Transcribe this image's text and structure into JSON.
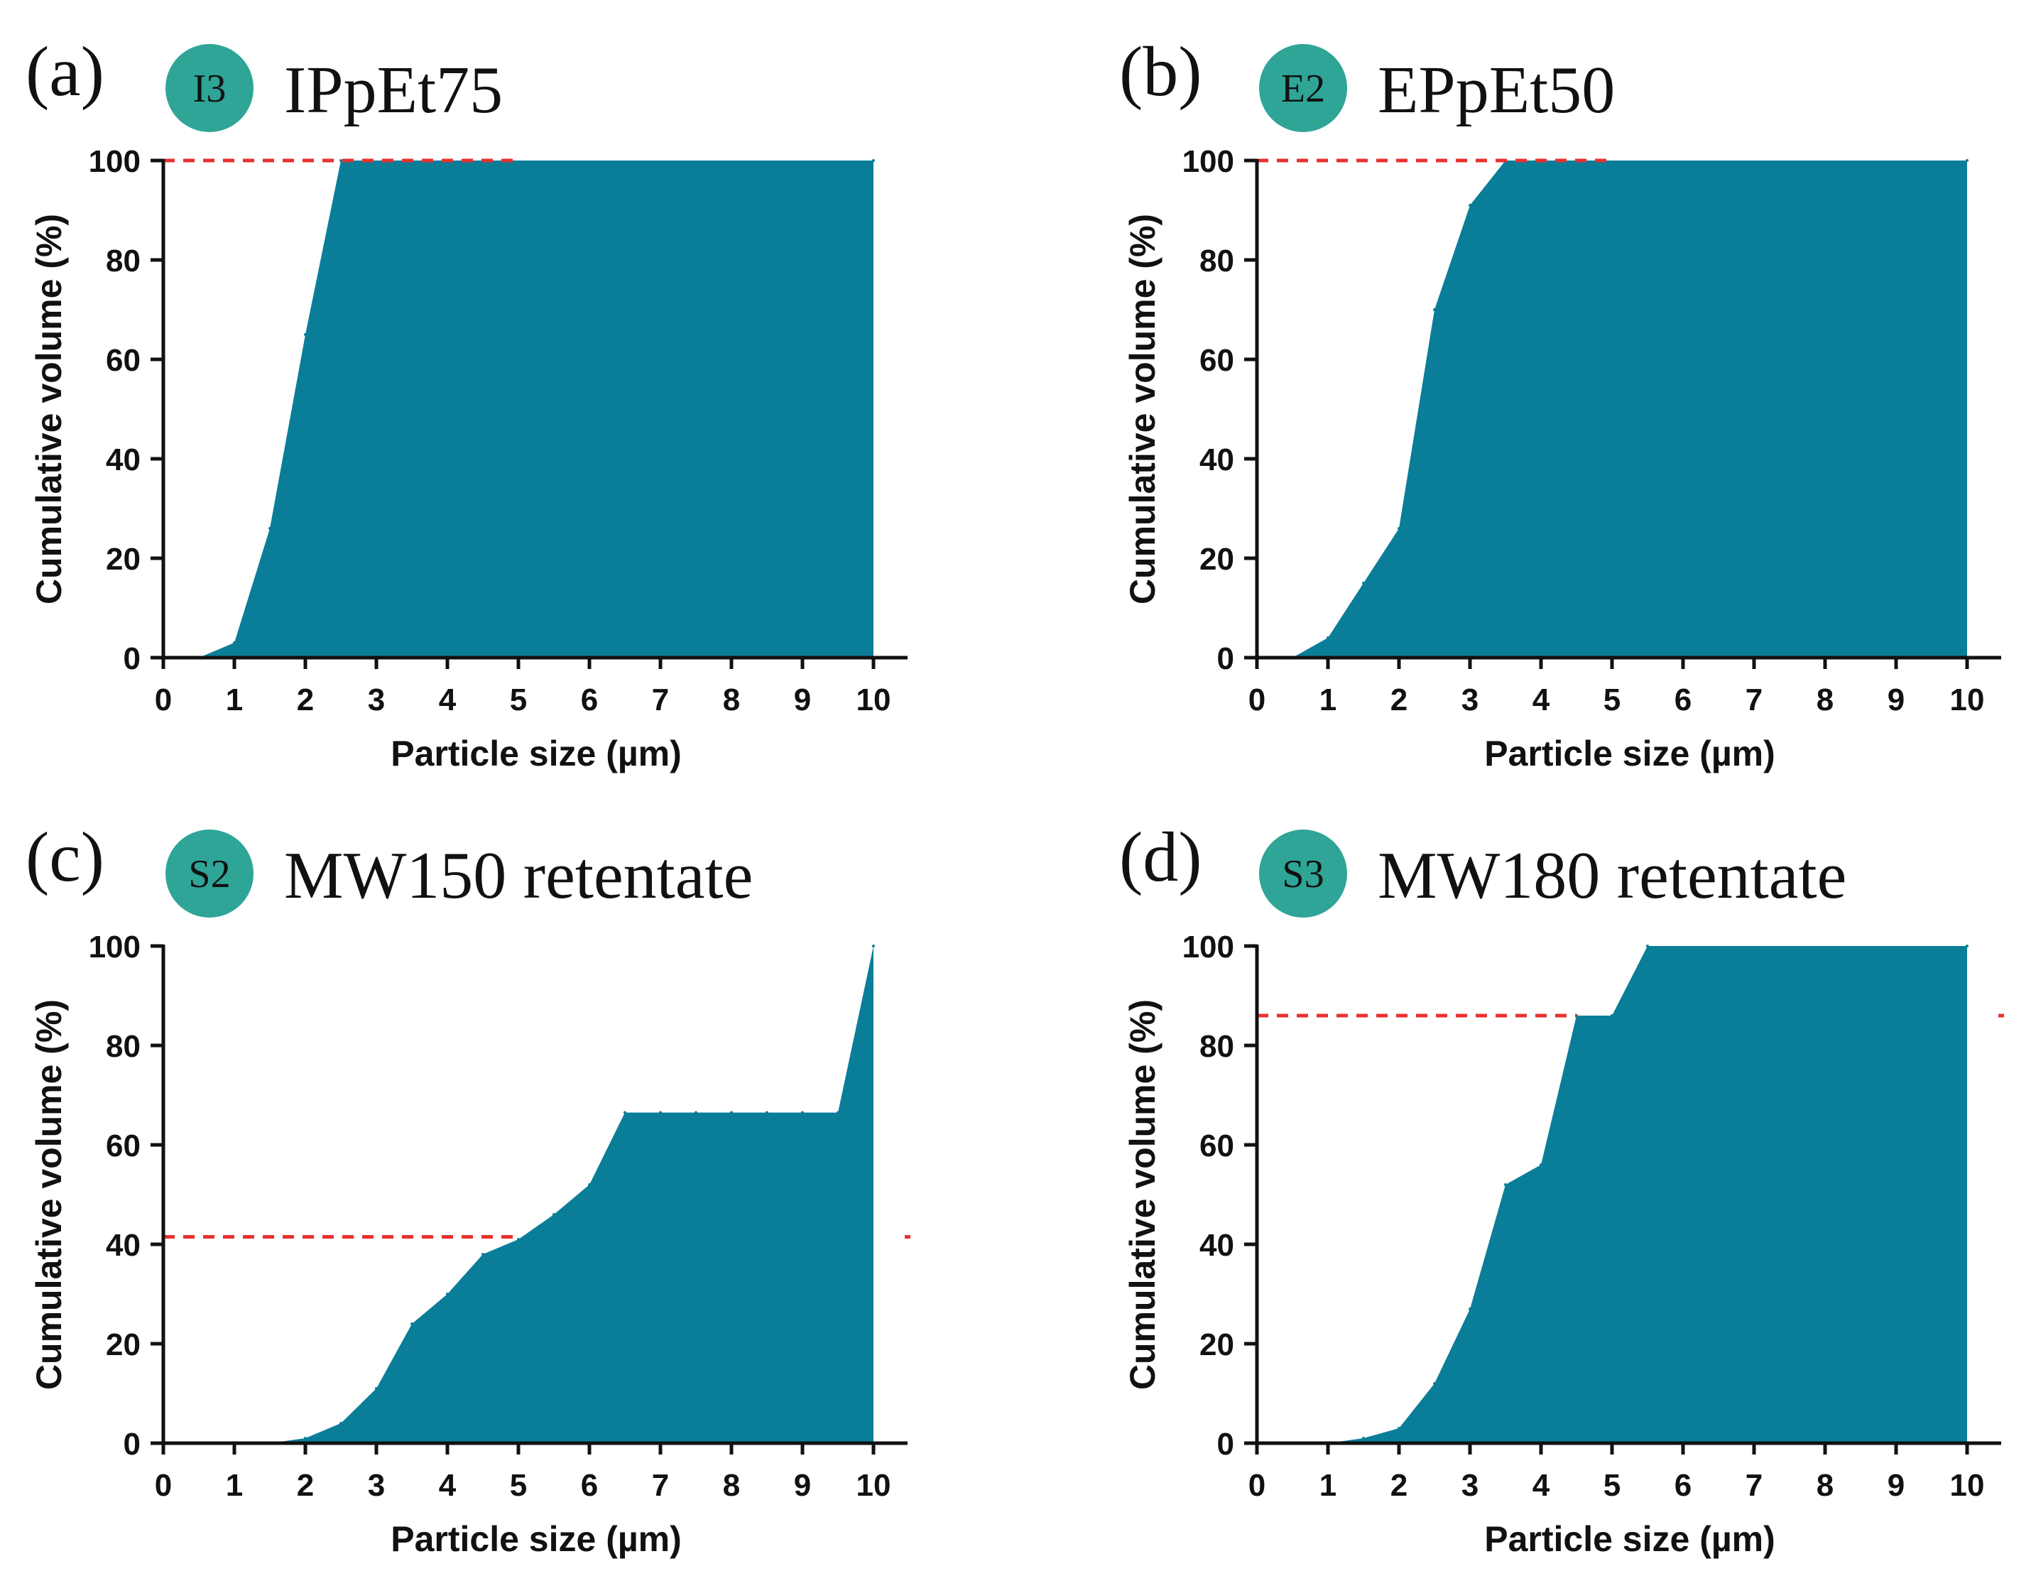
{
  "colors": {
    "fill": "#0a7e98",
    "badge": "#2ea597",
    "reference_line": "#e8312f",
    "axis": "#111111"
  },
  "chart_data": [
    {
      "type": "area",
      "panel_label": "(a)",
      "badge": "I3",
      "title": "IPpEt75",
      "xlabel": "Particle size (µm)",
      "ylabel": "Cumulative volume (%)",
      "xlim": [
        0,
        10
      ],
      "ylim": [
        0,
        100
      ],
      "x_ticks": [
        "0",
        "1",
        "2",
        "3",
        "4",
        "5",
        "6",
        "7",
        "8",
        "9",
        "10"
      ],
      "y_ticks": [
        "0",
        "20",
        "40",
        "60",
        "80",
        "100"
      ],
      "x": [
        0,
        0.5,
        1,
        1.5,
        2,
        2.5,
        10
      ],
      "y": [
        0,
        0,
        3,
        26,
        65,
        100,
        100
      ],
      "reference_line": {
        "y": 100,
        "x_range": [
          0,
          5
        ]
      }
    },
    {
      "type": "area",
      "panel_label": "(b)",
      "badge": "E2",
      "title": "EPpEt50",
      "xlabel": "Particle size (µm)",
      "ylabel": "Cumulative volume (%)",
      "xlim": [
        0,
        10
      ],
      "ylim": [
        0,
        100
      ],
      "x_ticks": [
        "0",
        "1",
        "2",
        "3",
        "4",
        "5",
        "6",
        "7",
        "8",
        "9",
        "10"
      ],
      "y_ticks": [
        "0",
        "20",
        "40",
        "60",
        "80",
        "100"
      ],
      "x": [
        0,
        0.5,
        1,
        1.5,
        2,
        2.5,
        3,
        3.5,
        10
      ],
      "y": [
        0,
        0,
        4,
        15,
        26,
        70,
        91,
        100,
        100
      ],
      "reference_line": {
        "y": 100,
        "x_range": [
          0,
          5
        ]
      }
    },
    {
      "type": "area",
      "panel_label": "(c)",
      "badge": "S2",
      "title": "MW150 retentate",
      "xlabel": "Particle size (µm)",
      "ylabel": "Cumulative volume (%)",
      "xlim": [
        0,
        10
      ],
      "ylim": [
        0,
        100
      ],
      "x_ticks": [
        "0",
        "1",
        "2",
        "3",
        "4",
        "5",
        "6",
        "7",
        "8",
        "9",
        "10"
      ],
      "y_ticks": [
        "0",
        "20",
        "40",
        "60",
        "80",
        "100"
      ],
      "x": [
        0,
        0.5,
        1,
        1.5,
        2,
        2.5,
        3,
        3.5,
        4,
        4.5,
        5,
        5.5,
        6,
        6.5,
        7,
        7.5,
        8,
        8.5,
        9,
        9.5,
        10
      ],
      "y": [
        0,
        0,
        0,
        0,
        1,
        4,
        11,
        24,
        30,
        38,
        41,
        46,
        52,
        66.5,
        66.5,
        66.5,
        66.5,
        66.5,
        66.5,
        66.5,
        100
      ],
      "reference_line": {
        "y": 41.5,
        "x_range": [
          0,
          5
        ]
      },
      "reference_line_extra": {
        "y": 41.5,
        "x": 10.5
      }
    },
    {
      "type": "area",
      "panel_label": "(d)",
      "badge": "S3",
      "title": "MW180 retentate",
      "xlabel": "Particle size (µm)",
      "ylabel": "Cumulative volume (%)",
      "xlim": [
        0,
        10
      ],
      "ylim": [
        0,
        100
      ],
      "x_ticks": [
        "0",
        "1",
        "2",
        "3",
        "4",
        "5",
        "6",
        "7",
        "8",
        "9",
        "10"
      ],
      "y_ticks": [
        "0",
        "20",
        "40",
        "60",
        "80",
        "100"
      ],
      "x": [
        0,
        0.5,
        1,
        1.5,
        2,
        2.5,
        3,
        3.5,
        4,
        4.5,
        5,
        5.5,
        10
      ],
      "y": [
        0,
        0,
        0,
        1,
        3,
        12,
        27,
        52,
        56,
        86,
        86,
        100,
        100
      ],
      "reference_line": {
        "y": 86,
        "x_range": [
          0,
          4.5
        ]
      },
      "reference_line_extra": {
        "y": 86,
        "x": 10.5
      }
    }
  ]
}
